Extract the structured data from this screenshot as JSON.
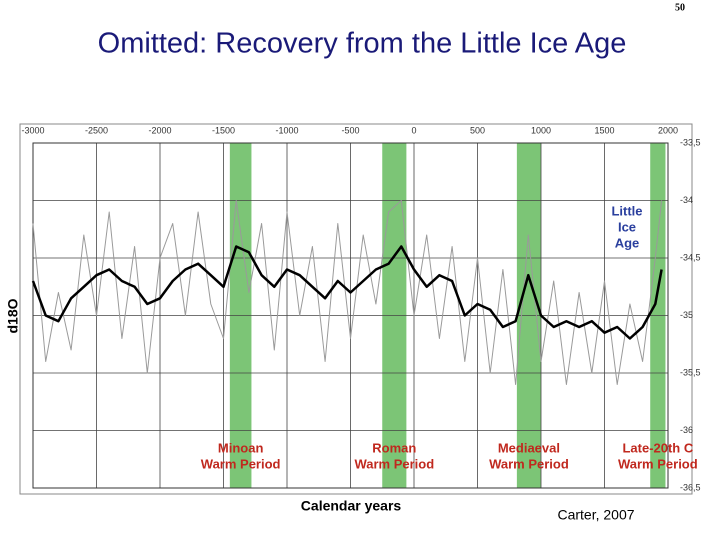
{
  "page_number": "50",
  "chart_data": {
    "type": "line",
    "title": "Omitted:  Recovery from the Little Ice Age",
    "y_label": "d18O",
    "x_label": "Calendar years",
    "source": "Carter, 2007",
    "annotation": [
      "Little",
      "Ice",
      "Age"
    ],
    "xlim": [
      -3000,
      2000
    ],
    "xticks": [
      -3000,
      -2500,
      -2000,
      -1500,
      -1000,
      -500,
      0,
      500,
      1000,
      1500,
      2000
    ],
    "ylim": [
      -36.5,
      -33.5
    ],
    "yticks": [
      {
        "value": -33.5,
        "label": "-33,5"
      },
      -34,
      {
        "value": -34.5,
        "label": "-34,5"
      },
      -35,
      {
        "value": -35.5,
        "label": "-35,5"
      },
      -36,
      {
        "value": -36.5,
        "label": "-36,5"
      }
    ],
    "grid": true,
    "period_color": "#7cc576",
    "periods": [
      {
        "label": [
          "Minoan",
          "Warm Period"
        ],
        "start": -1450,
        "end": -1280
      },
      {
        "label": [
          "Roman",
          "Warm Period"
        ],
        "start": -250,
        "end": -60
      },
      {
        "label": [
          "Mediaeval",
          "Warm Period"
        ],
        "start": 810,
        "end": 1000
      },
      {
        "label": [
          "Late-20th C",
          "Warm Period"
        ],
        "start": 1860,
        "end": 1980
      }
    ],
    "x": [
      -3000,
      -2900,
      -2800,
      -2700,
      -2600,
      -2500,
      -2400,
      -2300,
      -2200,
      -2100,
      -2000,
      -1900,
      -1800,
      -1700,
      -1600,
      -1500,
      -1400,
      -1300,
      -1200,
      -1100,
      -1000,
      -900,
      -800,
      -700,
      -600,
      -500,
      -400,
      -300,
      -200,
      -100,
      0,
      100,
      200,
      300,
      400,
      500,
      600,
      700,
      800,
      900,
      1000,
      1100,
      1200,
      1300,
      1400,
      1500,
      1600,
      1700,
      1800,
      1900,
      1950
    ],
    "series": [
      {
        "color": "#9a9a9a",
        "width": 1,
        "values": [
          -34.2,
          -35.4,
          -34.8,
          -35.3,
          -34.3,
          -35.0,
          -34.1,
          -35.2,
          -34.4,
          -35.5,
          -34.5,
          -34.2,
          -35.0,
          -34.1,
          -34.9,
          -35.2,
          -34.0,
          -34.8,
          -34.2,
          -35.3,
          -34.1,
          -35.0,
          -34.4,
          -35.4,
          -34.2,
          -35.2,
          -34.3,
          -34.9,
          -34.1,
          -34.0,
          -35.0,
          -34.3,
          -35.2,
          -34.4,
          -35.4,
          -34.5,
          -35.5,
          -34.6,
          -35.6,
          -34.3,
          -35.4,
          -34.7,
          -35.6,
          -34.8,
          -35.5,
          -34.7,
          -35.6,
          -34.9,
          -35.4,
          -34.5,
          -34.0
        ]
      },
      {
        "color": "#000000",
        "width": 2.5,
        "values": [
          -34.7,
          -35.0,
          -35.05,
          -34.85,
          -34.75,
          -34.65,
          -34.6,
          -34.7,
          -34.75,
          -34.9,
          -34.85,
          -34.7,
          -34.6,
          -34.55,
          -34.65,
          -34.75,
          -34.4,
          -34.45,
          -34.65,
          -34.75,
          -34.6,
          -34.65,
          -34.75,
          -34.85,
          -34.7,
          -34.8,
          -34.7,
          -34.6,
          -34.55,
          -34.4,
          -34.6,
          -34.75,
          -34.65,
          -34.7,
          -35.0,
          -34.9,
          -34.95,
          -35.1,
          -35.05,
          -34.65,
          -35.0,
          -35.1,
          -35.05,
          -35.1,
          -35.05,
          -35.15,
          -35.1,
          -35.2,
          -35.1,
          -34.9,
          -34.6
        ]
      }
    ]
  }
}
